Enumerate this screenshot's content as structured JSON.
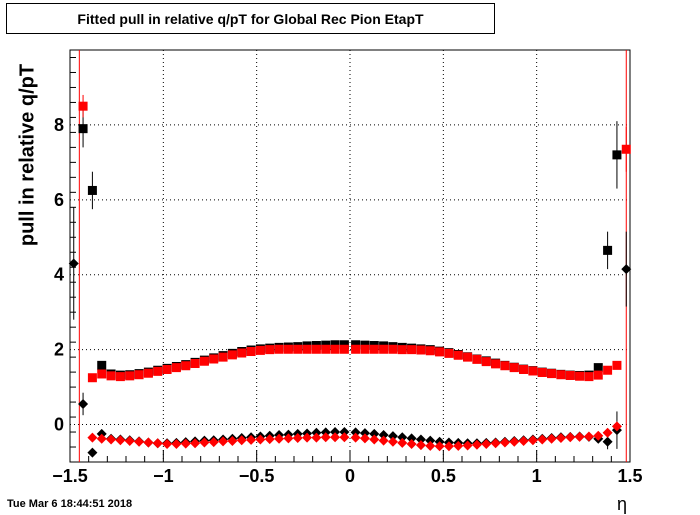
{
  "title": "Fitted pull in relative q/pT for Global Rec Pion EtapT",
  "xlabel": "η",
  "ylabel": "pull in relative q/pT",
  "timestamp": "Tue Mar  6 18:44:51 2018",
  "colors": {
    "black": "#000000",
    "red": "#ff0000"
  },
  "chart_data": {
    "type": "scatter",
    "title": "Fitted pull in relative q/pT for Global Rec Pion EtapT",
    "xlabel": "η",
    "ylabel": "pull in relative q/pT",
    "xlim": [
      -1.5,
      1.5
    ],
    "ylim": [
      -1.0,
      10.0
    ],
    "grid": true,
    "xticks": [
      -1.5,
      -1,
      -0.5,
      0,
      0.5,
      1,
      1.5
    ],
    "xtick_labels": [
      "−1.5",
      "−1",
      "−0.5",
      "0",
      "0.5",
      "1",
      "1.5"
    ],
    "yticks": [
      0,
      2,
      4,
      6,
      8
    ],
    "ytick_labels": [
      "0",
      "2",
      "4",
      "6",
      "8"
    ],
    "vlines": [
      -1.45,
      1.48
    ],
    "series": [
      {
        "marker": "square",
        "color": "#000000",
        "x": [
          -1.43,
          -1.38,
          -1.33,
          -1.28,
          -1.23,
          -1.18,
          -1.13,
          -1.08,
          -1.03,
          -0.98,
          -0.93,
          -0.88,
          -0.83,
          -0.78,
          -0.73,
          -0.68,
          -0.63,
          -0.58,
          -0.53,
          -0.48,
          -0.43,
          -0.38,
          -0.33,
          -0.28,
          -0.23,
          -0.18,
          -0.13,
          -0.08,
          -0.03,
          0.03,
          0.08,
          0.13,
          0.18,
          0.23,
          0.28,
          0.33,
          0.38,
          0.43,
          0.48,
          0.53,
          0.58,
          0.63,
          0.68,
          0.73,
          0.78,
          0.83,
          0.88,
          0.93,
          0.98,
          1.03,
          1.08,
          1.13,
          1.18,
          1.23,
          1.28,
          1.33,
          1.38,
          1.43
        ],
        "y": [
          7.9,
          6.25,
          1.58,
          1.35,
          1.32,
          1.33,
          1.36,
          1.4,
          1.45,
          1.5,
          1.55,
          1.6,
          1.66,
          1.72,
          1.78,
          1.84,
          1.9,
          1.95,
          1.99,
          2.02,
          2.04,
          2.06,
          2.07,
          2.08,
          2.1,
          2.11,
          2.12,
          2.13,
          2.13,
          2.13,
          2.12,
          2.11,
          2.1,
          2.08,
          2.06,
          2.04,
          2.02,
          2.0,
          1.96,
          1.92,
          1.87,
          1.81,
          1.75,
          1.7,
          1.64,
          1.58,
          1.53,
          1.48,
          1.44,
          1.4,
          1.37,
          1.34,
          1.32,
          1.31,
          1.32,
          1.52,
          4.65,
          7.2
        ],
        "yerr": [
          0.5,
          0.5,
          0.05,
          0.03,
          0.02,
          0.02,
          0.02,
          0.02,
          0.02,
          0.02,
          0.02,
          0.02,
          0.02,
          0.02,
          0.02,
          0.02,
          0.02,
          0.02,
          0.02,
          0.02,
          0.02,
          0.02,
          0.02,
          0.02,
          0.02,
          0.02,
          0.02,
          0.02,
          0.02,
          0.02,
          0.02,
          0.02,
          0.02,
          0.02,
          0.02,
          0.02,
          0.02,
          0.02,
          0.02,
          0.02,
          0.02,
          0.02,
          0.02,
          0.02,
          0.02,
          0.02,
          0.02,
          0.02,
          0.02,
          0.02,
          0.02,
          0.02,
          0.02,
          0.02,
          0.02,
          0.05,
          0.5,
          0.9
        ]
      },
      {
        "marker": "square",
        "color": "#ff0000",
        "x": [
          -1.43,
          -1.38,
          -1.33,
          -1.28,
          -1.23,
          -1.18,
          -1.13,
          -1.08,
          -1.03,
          -0.98,
          -0.93,
          -0.88,
          -0.83,
          -0.78,
          -0.73,
          -0.68,
          -0.63,
          -0.58,
          -0.53,
          -0.48,
          -0.43,
          -0.38,
          -0.33,
          -0.28,
          -0.23,
          -0.18,
          -0.13,
          -0.08,
          -0.03,
          0.03,
          0.08,
          0.13,
          0.18,
          0.23,
          0.28,
          0.33,
          0.38,
          0.43,
          0.48,
          0.53,
          0.58,
          0.63,
          0.68,
          0.73,
          0.78,
          0.83,
          0.88,
          0.93,
          0.98,
          1.03,
          1.08,
          1.13,
          1.18,
          1.23,
          1.28,
          1.33,
          1.38,
          1.43,
          1.48
        ],
        "y": [
          8.5,
          1.25,
          1.35,
          1.3,
          1.28,
          1.3,
          1.33,
          1.37,
          1.42,
          1.47,
          1.52,
          1.57,
          1.63,
          1.69,
          1.75,
          1.8,
          1.86,
          1.91,
          1.95,
          1.98,
          2.0,
          2.01,
          2.01,
          2.01,
          2.01,
          2.01,
          2.01,
          2.01,
          2.01,
          2.01,
          2.01,
          2.01,
          2.01,
          2.01,
          2.0,
          2.0,
          1.99,
          1.97,
          1.94,
          1.9,
          1.85,
          1.8,
          1.74,
          1.68,
          1.62,
          1.57,
          1.52,
          1.47,
          1.43,
          1.39,
          1.36,
          1.33,
          1.31,
          1.29,
          1.28,
          1.32,
          1.45,
          1.58,
          7.35
        ],
        "yerr": [
          0.3,
          0.04,
          0.03,
          0.02,
          0.02,
          0.02,
          0.02,
          0.02,
          0.02,
          0.02,
          0.02,
          0.02,
          0.02,
          0.02,
          0.02,
          0.02,
          0.02,
          0.02,
          0.02,
          0.02,
          0.02,
          0.02,
          0.02,
          0.02,
          0.02,
          0.02,
          0.02,
          0.02,
          0.02,
          0.02,
          0.02,
          0.02,
          0.02,
          0.02,
          0.02,
          0.02,
          0.02,
          0.02,
          0.02,
          0.02,
          0.02,
          0.02,
          0.02,
          0.02,
          0.02,
          0.02,
          0.02,
          0.02,
          0.02,
          0.02,
          0.02,
          0.02,
          0.02,
          0.02,
          0.02,
          0.03,
          0.05,
          0.06,
          0.6
        ]
      },
      {
        "marker": "diamond",
        "color": "#000000",
        "x": [
          -1.48,
          -1.43,
          -1.38,
          -1.33,
          -1.28,
          -1.23,
          -1.18,
          -1.13,
          -1.08,
          -1.03,
          -0.98,
          -0.93,
          -0.88,
          -0.83,
          -0.78,
          -0.73,
          -0.68,
          -0.63,
          -0.58,
          -0.53,
          -0.48,
          -0.43,
          -0.38,
          -0.33,
          -0.28,
          -0.23,
          -0.18,
          -0.13,
          -0.08,
          -0.03,
          0.03,
          0.08,
          0.13,
          0.18,
          0.23,
          0.28,
          0.33,
          0.38,
          0.43,
          0.48,
          0.53,
          0.58,
          0.63,
          0.68,
          0.73,
          0.78,
          0.83,
          0.88,
          0.93,
          0.98,
          1.03,
          1.08,
          1.13,
          1.18,
          1.23,
          1.28,
          1.33,
          1.38,
          1.43,
          1.48
        ],
        "y": [
          4.3,
          0.55,
          -0.75,
          -0.25,
          -0.38,
          -0.4,
          -0.42,
          -0.45,
          -0.48,
          -0.5,
          -0.5,
          -0.49,
          -0.47,
          -0.45,
          -0.43,
          -0.42,
          -0.4,
          -0.38,
          -0.36,
          -0.34,
          -0.32,
          -0.3,
          -0.28,
          -0.27,
          -0.25,
          -0.24,
          -0.22,
          -0.21,
          -0.2,
          -0.2,
          -0.21,
          -0.23,
          -0.25,
          -0.28,
          -0.31,
          -0.34,
          -0.37,
          -0.4,
          -0.43,
          -0.46,
          -0.48,
          -0.49,
          -0.5,
          -0.5,
          -0.49,
          -0.48,
          -0.46,
          -0.44,
          -0.42,
          -0.4,
          -0.38,
          -0.36,
          -0.34,
          -0.33,
          -0.32,
          -0.33,
          -0.38,
          -0.46,
          -0.15,
          4.15
        ],
        "yerr": [
          1.5,
          0.3,
          0.1,
          0.05,
          0.02,
          0.02,
          0.02,
          0.02,
          0.02,
          0.02,
          0.02,
          0.02,
          0.02,
          0.02,
          0.02,
          0.02,
          0.02,
          0.02,
          0.02,
          0.02,
          0.02,
          0.02,
          0.02,
          0.02,
          0.02,
          0.02,
          0.02,
          0.02,
          0.02,
          0.02,
          0.02,
          0.02,
          0.02,
          0.02,
          0.02,
          0.02,
          0.02,
          0.02,
          0.02,
          0.02,
          0.02,
          0.02,
          0.02,
          0.02,
          0.02,
          0.02,
          0.02,
          0.02,
          0.02,
          0.02,
          0.02,
          0.02,
          0.02,
          0.02,
          0.02,
          0.03,
          0.05,
          0.2,
          0.5,
          1.0
        ]
      },
      {
        "marker": "diamond",
        "color": "#ff0000",
        "x": [
          -1.38,
          -1.33,
          -1.28,
          -1.23,
          -1.18,
          -1.13,
          -1.08,
          -1.03,
          -0.98,
          -0.93,
          -0.88,
          -0.83,
          -0.78,
          -0.73,
          -0.68,
          -0.63,
          -0.58,
          -0.53,
          -0.48,
          -0.43,
          -0.38,
          -0.33,
          -0.28,
          -0.23,
          -0.18,
          -0.13,
          -0.08,
          -0.03,
          0.03,
          0.08,
          0.13,
          0.18,
          0.23,
          0.28,
          0.33,
          0.38,
          0.43,
          0.48,
          0.53,
          0.58,
          0.63,
          0.68,
          0.73,
          0.78,
          0.83,
          0.88,
          0.93,
          0.98,
          1.03,
          1.08,
          1.13,
          1.18,
          1.23,
          1.28,
          1.33,
          1.38,
          1.43
        ],
        "y": [
          -0.35,
          -0.38,
          -0.4,
          -0.42,
          -0.44,
          -0.46,
          -0.48,
          -0.5,
          -0.52,
          -0.52,
          -0.51,
          -0.5,
          -0.48,
          -0.47,
          -0.45,
          -0.44,
          -0.42,
          -0.41,
          -0.4,
          -0.39,
          -0.38,
          -0.37,
          -0.36,
          -0.35,
          -0.35,
          -0.34,
          -0.34,
          -0.34,
          -0.35,
          -0.37,
          -0.4,
          -0.43,
          -0.46,
          -0.49,
          -0.52,
          -0.55,
          -0.57,
          -0.58,
          -0.58,
          -0.57,
          -0.56,
          -0.54,
          -0.52,
          -0.5,
          -0.48,
          -0.46,
          -0.44,
          -0.42,
          -0.4,
          -0.38,
          -0.36,
          -0.34,
          -0.33,
          -0.32,
          -0.3,
          -0.22,
          -0.05
        ],
        "yerr": [
          0.03,
          0.02,
          0.02,
          0.02,
          0.02,
          0.02,
          0.02,
          0.02,
          0.02,
          0.02,
          0.02,
          0.02,
          0.02,
          0.02,
          0.02,
          0.02,
          0.02,
          0.02,
          0.02,
          0.02,
          0.02,
          0.02,
          0.02,
          0.02,
          0.02,
          0.02,
          0.02,
          0.02,
          0.02,
          0.02,
          0.02,
          0.02,
          0.02,
          0.02,
          0.02,
          0.02,
          0.02,
          0.02,
          0.02,
          0.02,
          0.02,
          0.02,
          0.02,
          0.02,
          0.02,
          0.02,
          0.02,
          0.02,
          0.02,
          0.02,
          0.02,
          0.02,
          0.02,
          0.02,
          0.03,
          0.05,
          0.1
        ]
      }
    ]
  }
}
